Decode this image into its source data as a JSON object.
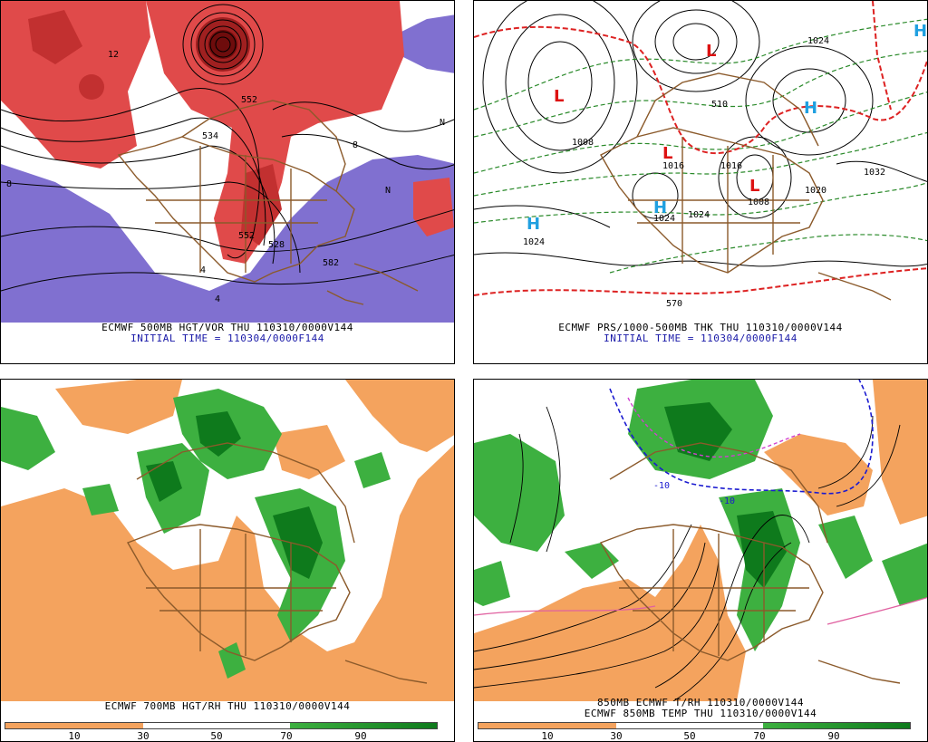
{
  "panels": [
    {
      "caption": "ECMWF 500MB HGT/VOR THU 110310/0000V144",
      "initial": "INITIAL TIME = 110304/0000F144",
      "labels": [
        "12",
        "534",
        "552",
        "552",
        "582",
        "528",
        "8",
        "8",
        "4",
        "4",
        "N",
        "N"
      ]
    },
    {
      "caption": "ECMWF PRS/1000-500MB THK THU 110310/0000V144",
      "initial": "INITIAL TIME = 110304/0000F144",
      "labels": [
        "1008",
        "1024",
        "1024",
        "1032",
        "1008",
        "1016",
        "1024",
        "1024",
        "1016",
        "570",
        "510",
        "1020"
      ],
      "symbols": [
        "L",
        "L",
        "L",
        "L",
        "H",
        "H",
        "H",
        "H"
      ]
    },
    {
      "caption": "ECMWF 700MB HGT/RH THU 110310/0000V144",
      "colorbar_ticks": [
        "10",
        "30",
        "50",
        "70",
        "90"
      ]
    },
    {
      "caption": "850MB ECMWF T/RH 110310/0000V144",
      "caption2": "ECMWF 850MB TEMP THU 110310/0000V144",
      "labels": [
        "-10",
        "-10"
      ],
      "colorbar_ticks": [
        "10",
        "30",
        "50",
        "70",
        "90"
      ]
    }
  ],
  "colors": {
    "vorticity_red": "#e04a4a",
    "vorticity_dark": "#7a0e0e",
    "negative_purple": "#8070d0",
    "rh_dry_orange": "#f4a35e",
    "rh_moist_green": "#3db040",
    "rh_wet_green": "#0e7a1c",
    "map_brown": "#8b5a2b",
    "thickness_red": "#dd2222",
    "thickness_green": "#2a8a2a",
    "high_cyan": "#20a0e0",
    "low_red": "#dd1111"
  }
}
